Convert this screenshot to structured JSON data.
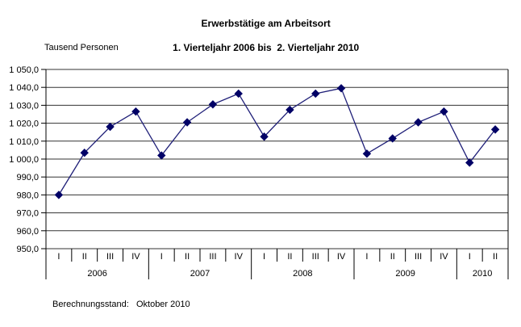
{
  "title": {
    "line1": "Erwerbstätige am Arbeitsort",
    "line2": "1. Vierteljahr 2006 bis  2. Vierteljahr 2010"
  },
  "y_axis_unit": "Tausend Personen",
  "footer": {
    "text": "Berechnungsstand:   Oktober 2010"
  },
  "chart_data": {
    "type": "line",
    "title": "Erwerbstätige am Arbeitsort",
    "subtitle": "1. Vierteljahr 2006 bis 2. Vierteljahr 2010",
    "ylabel": "Tausend Personen",
    "xlabel": "",
    "ylim": [
      950,
      1050
    ],
    "ytick_step": 10,
    "grid": true,
    "legend": false,
    "line_color": "#1f1f78",
    "marker_color": "#000066",
    "marker_shape": "diamond",
    "categories": [
      "2006-I",
      "2006-II",
      "2006-III",
      "2006-IV",
      "2007-I",
      "2007-II",
      "2007-III",
      "2007-IV",
      "2008-I",
      "2008-II",
      "2008-III",
      "2008-IV",
      "2009-I",
      "2009-II",
      "2009-III",
      "2009-IV",
      "2010-I",
      "2010-II"
    ],
    "quarter_labels": [
      "I",
      "II",
      "III",
      "IV",
      "I",
      "II",
      "III",
      "IV",
      "I",
      "II",
      "III",
      "IV",
      "I",
      "II",
      "III",
      "IV",
      "I",
      "II"
    ],
    "year_groups": [
      {
        "label": "2006",
        "count": 4
      },
      {
        "label": "2007",
        "count": 4
      },
      {
        "label": "2008",
        "count": 4
      },
      {
        "label": "2009",
        "count": 4
      },
      {
        "label": "2010",
        "count": 2
      }
    ],
    "series": [
      {
        "name": "Erwerbstätige am Arbeitsort (Tausend Personen)",
        "values": [
          980.0,
          1003.5,
          1018.0,
          1026.5,
          1002.0,
          1020.5,
          1030.5,
          1036.5,
          1012.5,
          1027.5,
          1036.5,
          1039.5,
          1003.0,
          1011.5,
          1020.5,
          1026.5,
          998.0,
          1016.5
        ]
      }
    ],
    "yticks": [
      {
        "value": 1050,
        "label": "1 050,0"
      },
      {
        "value": 1040,
        "label": "1 040,0"
      },
      {
        "value": 1030,
        "label": "1 030,0"
      },
      {
        "value": 1020,
        "label": "1 020,0"
      },
      {
        "value": 1010,
        "label": "1 010,0"
      },
      {
        "value": 1000,
        "label": "1 000,0"
      },
      {
        "value": 990,
        "label": "990,0"
      },
      {
        "value": 980,
        "label": "980,0"
      },
      {
        "value": 970,
        "label": "970,0"
      },
      {
        "value": 960,
        "label": "960,0"
      },
      {
        "value": 950,
        "label": "950,0"
      }
    ]
  }
}
